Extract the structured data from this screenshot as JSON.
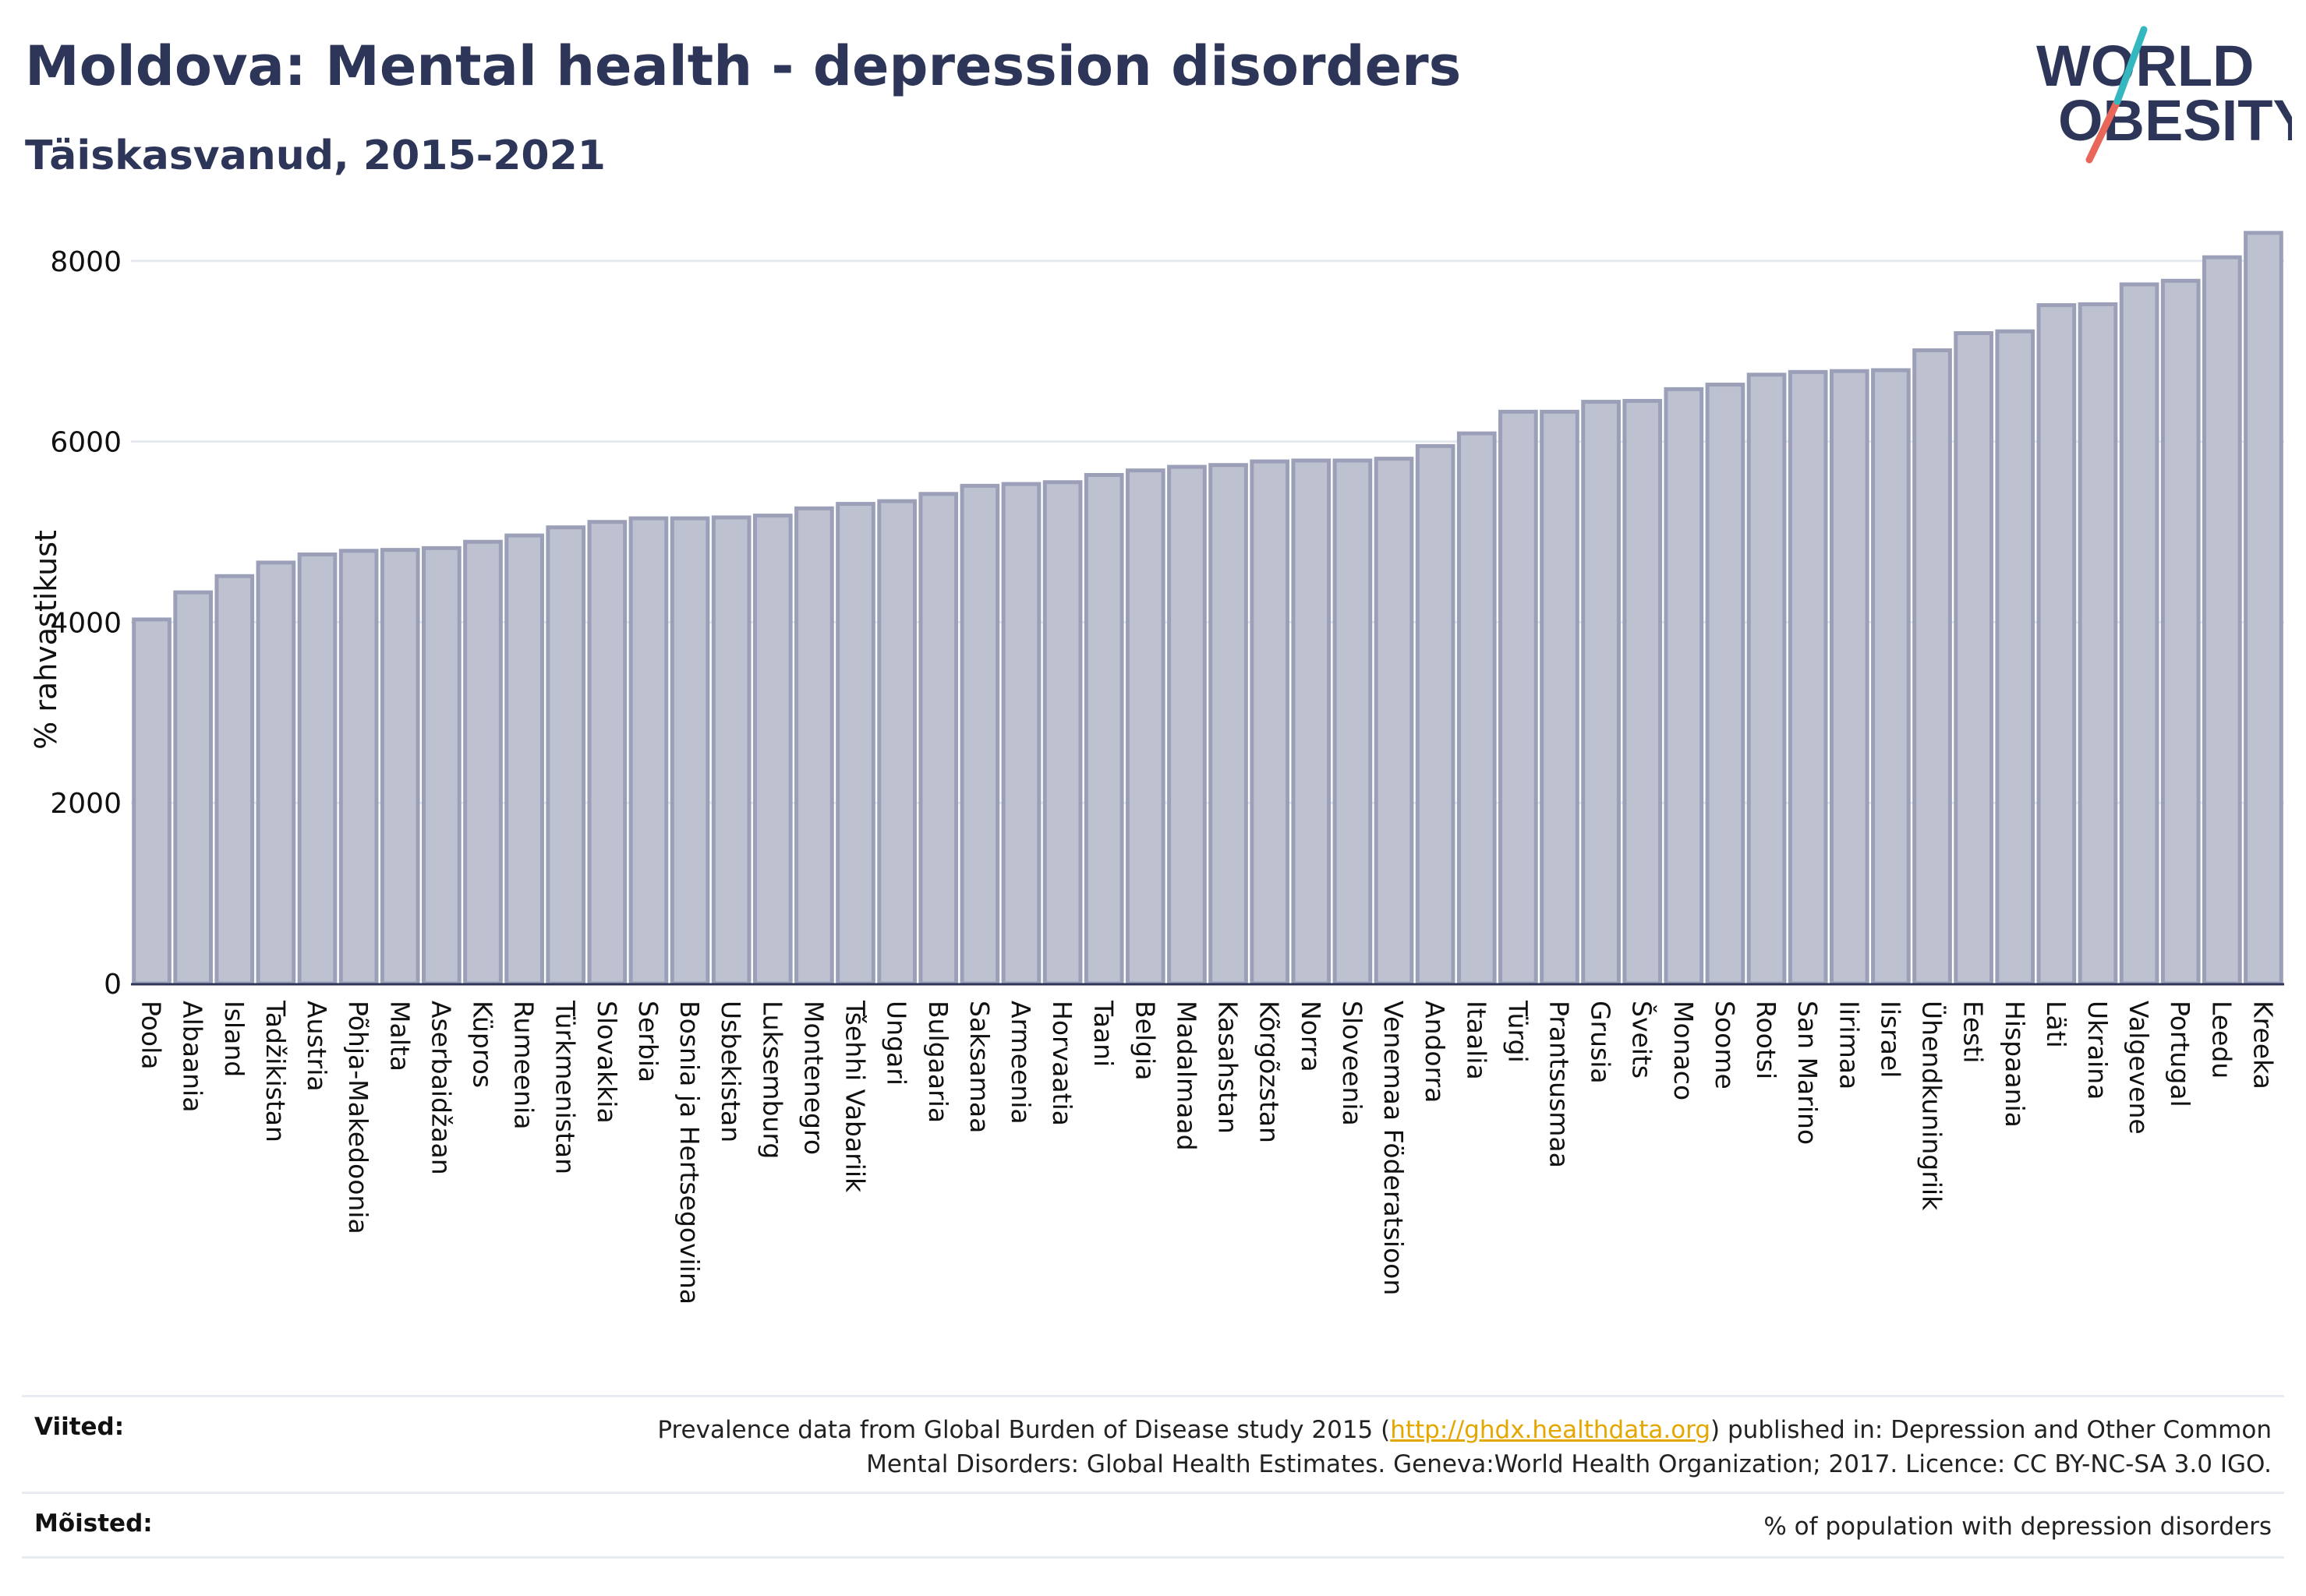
{
  "header": {
    "title": "Moldova: Mental health - depression disorders",
    "subtitle": "Täiskasvanud, 2015-2021",
    "logo_text_line1": "WORLD",
    "logo_text_line2": "OBESITY"
  },
  "colors": {
    "bar_fill": "#bec1cf",
    "bar_stroke": "#9ba0b8",
    "title": "#2d3658",
    "grid": "#e6e8ef",
    "axis": "#2d3658",
    "link": "#e3a700",
    "logo_teal": "#35b7c0",
    "logo_red": "#e8665a"
  },
  "chart_data": {
    "type": "bar",
    "ylabel": "% rahvastikust",
    "xlabel": "",
    "ylim": [
      0,
      8300
    ],
    "yticks": [
      0,
      2000,
      4000,
      6000,
      8000
    ],
    "grid": true,
    "categories": [
      "Poola",
      "Albaania",
      "Island",
      "Tadžikistan",
      "Austria",
      "Põhja-Makedoonia",
      "Malta",
      "Aserbaidžaan",
      "Küpros",
      "Rumeenia",
      "Türkmenistan",
      "Slovakkia",
      "Serbia",
      "Bosnia ja Hertsegoviina",
      "Usbekistan",
      "Luksemburg",
      "Montenegro",
      "Tšehhi Vabariik",
      "Ungari",
      "Bulgaaria",
      "Saksamaa",
      "Armeenia",
      "Horvaatia",
      "Taani",
      "Belgia",
      "Madalmaad",
      "Kasahstan",
      "Kõrgõzstan",
      "Norra",
      "Sloveenia",
      "Venemaa Föderatsioon",
      "Andorra",
      "Itaalia",
      "Türgi",
      "Prantsusmaa",
      "Grusia",
      "Šveits",
      "Monaco",
      "Soome",
      "Rootsi",
      "San Marino",
      "Iirimaa",
      "Iisrael",
      "Ühendkuningriik",
      "Eesti",
      "Hispaania",
      "Läti",
      "Ukraina",
      "Valgevene",
      "Portugal",
      "Leedu",
      "Kreeka"
    ],
    "values": [
      4030,
      4330,
      4510,
      4660,
      4750,
      4790,
      4800,
      4820,
      4890,
      4960,
      5050,
      5110,
      5150,
      5150,
      5160,
      5180,
      5260,
      5310,
      5340,
      5420,
      5510,
      5530,
      5550,
      5630,
      5680,
      5720,
      5740,
      5780,
      5790,
      5790,
      5810,
      5950,
      6090,
      6330,
      6330,
      6440,
      6450,
      6580,
      6630,
      6740,
      6770,
      6780,
      6790,
      7010,
      7200,
      7220,
      7510,
      7520,
      7740,
      7780,
      8040,
      8310
    ]
  },
  "footer": {
    "sources_label": "Viited:",
    "sources_text_before": "Prevalence data from Global Burden of Disease study 2015 (",
    "sources_link": "http://ghdx.healthdata.org",
    "sources_text_after": ") published in: Depression and Other Common",
    "sources_text_line2": "Mental Disorders: Global Health Estimates. Geneva:World Health Organization; 2017. Licence: CC BY-NC-SA 3.0 IGO.",
    "definitions_label": "Mõisted:",
    "definitions_text": "% of population with depression disorders"
  }
}
